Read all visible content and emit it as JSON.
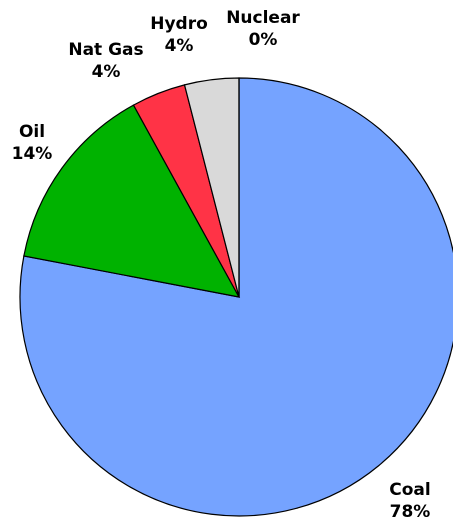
{
  "chart_data": {
    "type": "pie",
    "categories": [
      "Coal",
      "Oil",
      "Nat Gas",
      "Hydro",
      "Nuclear"
    ],
    "values": [
      78,
      14,
      4,
      4,
      0
    ],
    "value_labels": [
      "78%",
      "14%",
      "4%",
      "4%",
      "0%"
    ],
    "colors": [
      "#75a3ff",
      "#00b200",
      "#ff3346",
      "#d9d9d9",
      "#ffff66"
    ]
  }
}
